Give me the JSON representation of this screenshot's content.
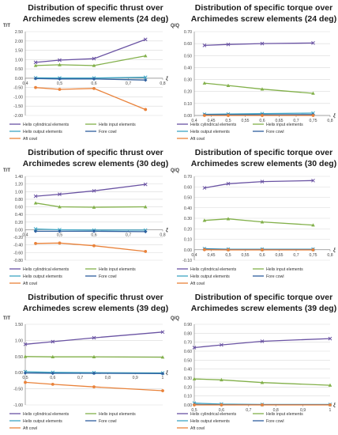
{
  "series_colors": {
    "Helix cylindrical elements": "#6a53a3",
    "Helix input elements": "#82b04a",
    "Helix output elements": "#3fa6c4",
    "Fore cowl": "#2f5f9e",
    "Aft cowl": "#e9823a"
  },
  "chart_data": [
    {
      "type": "line",
      "title": [
        "Distribution of specific thrust over",
        "Archimedes screw elements (24 deg)"
      ],
      "ylabel": "T/T",
      "xlabel": "ξ",
      "xlim": [
        0.4,
        0.8
      ],
      "xticks": [
        "0,4",
        "0,5",
        "0,6",
        "0,7",
        "0,8"
      ],
      "ylim": [
        -2.0,
        2.5
      ],
      "yticks": [
        "-2.00",
        "-1.50",
        "-1.00",
        "-0.50",
        "0.00",
        "0.50",
        "1.00",
        "1.50",
        "2.00",
        "2.50"
      ],
      "series": [
        {
          "name": "Helix cylindrical elements",
          "x": [
            0.43,
            0.5,
            0.6,
            0.75
          ],
          "y": [
            0.85,
            0.97,
            1.05,
            2.08
          ]
        },
        {
          "name": "Helix input elements",
          "x": [
            0.43,
            0.5,
            0.6,
            0.75
          ],
          "y": [
            0.68,
            0.72,
            0.68,
            1.2
          ]
        },
        {
          "name": "Helix output elements",
          "x": [
            0.43,
            0.5,
            0.6,
            0.75
          ],
          "y": [
            0.02,
            0.01,
            0.01,
            0.05
          ]
        },
        {
          "name": "Fore cowl",
          "x": [
            0.43,
            0.5,
            0.6,
            0.75
          ],
          "y": [
            -0.02,
            -0.04,
            -0.04,
            -0.1
          ]
        },
        {
          "name": "Aft cowl",
          "x": [
            0.43,
            0.5,
            0.6,
            0.75
          ],
          "y": [
            -0.5,
            -0.6,
            -0.55,
            -1.68
          ]
        }
      ],
      "legend": [
        "Helix cylindrical elements",
        "Helix input elements",
        "Helix output elements",
        "Fore cowl",
        "Aft cowl"
      ]
    },
    {
      "type": "line",
      "title": [
        "Distribution of specific torque over",
        "Archimedes screw elements (24 deg)"
      ],
      "ylabel": "Q/Q",
      "xlabel": "ξ",
      "xlim": [
        0.4,
        0.8
      ],
      "xticks": [
        "0,4",
        "0,45",
        "0,5",
        "0,55",
        "0,6",
        "0,65",
        "0,7",
        "0,75",
        "0,8"
      ],
      "ylim": [
        0,
        0.7
      ],
      "yticks": [
        "0.00",
        "0.10",
        "0.20",
        "0.30",
        "0.40",
        "0.50",
        "0.60",
        "0.70"
      ],
      "series": [
        {
          "name": "Helix cylindrical elements",
          "x": [
            0.43,
            0.5,
            0.6,
            0.75
          ],
          "y": [
            0.585,
            0.593,
            0.6,
            0.605
          ]
        },
        {
          "name": "Helix input elements",
          "x": [
            0.43,
            0.5,
            0.6,
            0.75
          ],
          "y": [
            0.27,
            0.25,
            0.22,
            0.185
          ]
        },
        {
          "name": "Helix output elements",
          "x": [
            0.43,
            0.5,
            0.6,
            0.75
          ],
          "y": [
            0.01,
            0.012,
            0.015,
            0.02
          ]
        },
        {
          "name": "Fore cowl",
          "x": [
            0.43,
            0.5,
            0.6,
            0.75
          ],
          "y": [
            0.005,
            0.005,
            0.006,
            0.007
          ]
        },
        {
          "name": "Aft cowl",
          "x": [
            0.43,
            0.5,
            0.6,
            0.75
          ],
          "y": [
            0.0,
            0.0,
            0.0,
            0.0
          ]
        }
      ],
      "legend": [
        "Helix cylindrical elements",
        "Helix input elements",
        "Helix output elements",
        "Fore cowl",
        "Aft cowl"
      ]
    },
    {
      "type": "line",
      "title": [
        "Distribution of specific thrust over",
        "Archimedes screw elements (30 deg)"
      ],
      "ylabel": "T/T",
      "xlabel": "ξ",
      "xlim": [
        0.4,
        0.8
      ],
      "xticks": [
        "0,4",
        "0,5",
        "0,6",
        "0,7",
        "0,8"
      ],
      "ylim": [
        -0.8,
        1.4
      ],
      "yticks": [
        "-0.80",
        "-0.60",
        "-0.40",
        "-0.20",
        "0.00",
        "0.20",
        "0.40",
        "0.60",
        "0.80",
        "1.00",
        "1.20",
        "1.40"
      ],
      "series": [
        {
          "name": "Helix cylindrical elements",
          "x": [
            0.43,
            0.5,
            0.6,
            0.75
          ],
          "y": [
            0.88,
            0.93,
            1.02,
            1.19
          ]
        },
        {
          "name": "Helix input elements",
          "x": [
            0.43,
            0.5,
            0.6,
            0.75
          ],
          "y": [
            0.7,
            0.6,
            0.59,
            0.6
          ]
        },
        {
          "name": "Helix output elements",
          "x": [
            0.43,
            0.5,
            0.6,
            0.75
          ],
          "y": [
            0.02,
            0.0,
            -0.01,
            -0.01
          ]
        },
        {
          "name": "Fore cowl",
          "x": [
            0.43,
            0.5,
            0.6,
            0.75
          ],
          "y": [
            -0.04,
            -0.04,
            -0.04,
            -0.05
          ]
        },
        {
          "name": "Aft cowl",
          "x": [
            0.43,
            0.5,
            0.6,
            0.75
          ],
          "y": [
            -0.36,
            -0.35,
            -0.42,
            -0.57
          ]
        }
      ],
      "legend": [
        "Helix cylindrical elements",
        "Helix input elements",
        "Helix output elements",
        "Fore cowl",
        "Aft cowl"
      ]
    },
    {
      "type": "line",
      "title": [
        "Distribution of specific torque over",
        "Archimedes screw elements (30 deg)"
      ],
      "ylabel": "Q/Q",
      "xlabel": "ξ",
      "xlim": [
        0.4,
        0.8
      ],
      "xticks": [
        "0,4",
        "0,45",
        "0,5",
        "0,55",
        "0,6",
        "0,65",
        "0,7",
        "0,75",
        "0,8"
      ],
      "ylim": [
        -0.1,
        0.7
      ],
      "yticks": [
        "-0.10",
        "0.00",
        "0.10",
        "0.20",
        "0.30",
        "0.40",
        "0.50",
        "0.60",
        "0.70"
      ],
      "series": [
        {
          "name": "Helix cylindrical elements",
          "x": [
            0.43,
            0.5,
            0.6,
            0.75
          ],
          "y": [
            0.59,
            0.63,
            0.65,
            0.66
          ]
        },
        {
          "name": "Helix input elements",
          "x": [
            0.43,
            0.5,
            0.6,
            0.75
          ],
          "y": [
            0.28,
            0.295,
            0.265,
            0.235
          ]
        },
        {
          "name": "Helix output elements",
          "x": [
            0.43,
            0.5,
            0.6,
            0.75
          ],
          "y": [
            0.01,
            0.005,
            0.005,
            0.005
          ]
        },
        {
          "name": "Fore cowl",
          "x": [
            0.43,
            0.5,
            0.6,
            0.75
          ],
          "y": [
            0.005,
            0.002,
            0.002,
            0.002
          ]
        },
        {
          "name": "Aft cowl",
          "x": [
            0.43,
            0.5,
            0.6,
            0.75
          ],
          "y": [
            0.0,
            -0.002,
            -0.002,
            -0.002
          ]
        }
      ],
      "legend": [
        "Helix cylindrical elements",
        "Helix input elements",
        "Helix output elements",
        "Fore cowl",
        "Aft cowl"
      ]
    },
    {
      "type": "line",
      "title": [
        "Distribution of specific thrust over",
        "Archimedes screw elements (39 deg)"
      ],
      "ylabel": "T/T",
      "xlabel": "ξ",
      "xlim": [
        0.5,
        1.0
      ],
      "xticks": [
        "0,5",
        "0,6",
        "0,7",
        "0,8",
        "0,9",
        "1"
      ],
      "ylim": [
        -1.0,
        1.5
      ],
      "yticks": [
        "-1.00",
        "-0.50",
        "0.00",
        "0.50",
        "1.00",
        "1.50"
      ],
      "series": [
        {
          "name": "Helix cylindrical elements",
          "x": [
            0.5,
            0.6,
            0.75,
            1.0
          ],
          "y": [
            0.88,
            0.96,
            1.08,
            1.26
          ]
        },
        {
          "name": "Helix input elements",
          "x": [
            0.5,
            0.6,
            0.75,
            1.0
          ],
          "y": [
            0.5,
            0.49,
            0.49,
            0.48
          ]
        },
        {
          "name": "Helix output elements",
          "x": [
            0.5,
            0.6,
            0.75,
            1.0
          ],
          "y": [
            0.03,
            0.01,
            0.0,
            -0.01
          ]
        },
        {
          "name": "Fore cowl",
          "x": [
            0.5,
            0.6,
            0.75,
            1.0
          ],
          "y": [
            -0.01,
            -0.02,
            -0.02,
            -0.03
          ]
        },
        {
          "name": "Aft cowl",
          "x": [
            0.5,
            0.6,
            0.75,
            1.0
          ],
          "y": [
            -0.3,
            -0.36,
            -0.44,
            -0.56
          ]
        }
      ],
      "legend": [
        "Helix cylindrical elements",
        "Helix input elements",
        "Helix output elements",
        "Fore cowl",
        "Aft cowl"
      ]
    },
    {
      "type": "line",
      "title": [
        "Distribution of specific torque over",
        "Archimedes screw elements (39 deg)"
      ],
      "ylabel": "Q/Q",
      "xlabel": "ξ",
      "xlim": [
        0.5,
        1.0
      ],
      "xticks": [
        "0,5",
        "0,6",
        "0,7",
        "0,8",
        "0,9",
        "1"
      ],
      "ylim": [
        0,
        0.9
      ],
      "yticks": [
        "0.00",
        "0.10",
        "0.20",
        "0.30",
        "0.40",
        "0.50",
        "0.60",
        "0.70",
        "0.80",
        "0.90"
      ],
      "series": [
        {
          "name": "Helix cylindrical elements",
          "x": [
            0.5,
            0.6,
            0.75,
            1.0
          ],
          "y": [
            0.64,
            0.67,
            0.71,
            0.74
          ]
        },
        {
          "name": "Helix input elements",
          "x": [
            0.5,
            0.6,
            0.75,
            1.0
          ],
          "y": [
            0.29,
            0.28,
            0.25,
            0.22
          ]
        },
        {
          "name": "Helix output elements",
          "x": [
            0.5,
            0.6,
            0.75,
            1.0
          ],
          "y": [
            0.02,
            0.01,
            0.005,
            0.005
          ]
        },
        {
          "name": "Fore cowl",
          "x": [
            0.5,
            0.6,
            0.75,
            1.0
          ],
          "y": [
            0.005,
            0.003,
            0.003,
            0.003
          ]
        },
        {
          "name": "Aft cowl",
          "x": [
            0.5,
            0.6,
            0.75,
            1.0
          ],
          "y": [
            0.0,
            0.0,
            0.0,
            0.0
          ]
        }
      ],
      "legend": [
        "Helix cylindrical elements",
        "Helix input elements",
        "Helix output elements",
        "Fore cowl",
        "Aft cowl"
      ]
    }
  ]
}
